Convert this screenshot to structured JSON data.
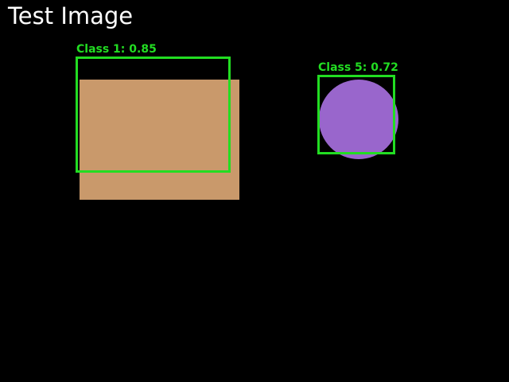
{
  "title": "Test Image",
  "colors": {
    "background": "#000000",
    "title_text": "#ffffff",
    "box": "#22dd22",
    "rectangle_fill": "#c9996b",
    "circle_fill": "#9966cc"
  },
  "detections": [
    {
      "label": "Class 1: 0.85",
      "class": "Class 1",
      "confidence": 0.85
    },
    {
      "label": "Class 5: 0.72",
      "class": "Class 5",
      "confidence": 0.72
    }
  ]
}
